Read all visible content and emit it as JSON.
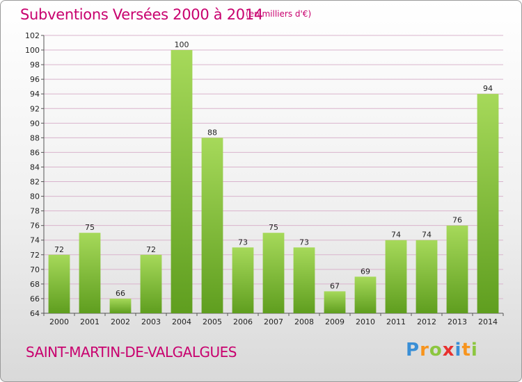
{
  "header": {
    "title": "Subventions Versées 2000 à 2014",
    "unit": "(en milliers d'€)"
  },
  "footer": {
    "commune": "SAINT-MARTIN-DE-VALGALGUES",
    "logo_letters": [
      "P",
      "r",
      "o",
      "x",
      "i",
      "t",
      "i"
    ],
    "logo_colors": [
      "#3a8fd6",
      "#f7941d",
      "#8cc63f",
      "#e8312f",
      "#3a8fd6",
      "#f7941d",
      "#8cc63f"
    ]
  },
  "colors": {
    "bar_light": "#a6d95a",
    "bar_dark": "#5f9e1f",
    "grid": "#d9b3cc",
    "axis": "#555555",
    "accent": "#c8006e"
  },
  "chart_data": {
    "type": "bar",
    "categories": [
      "2000",
      "2001",
      "2002",
      "2003",
      "2004",
      "2005",
      "2006",
      "2007",
      "2008",
      "2009",
      "2010",
      "2011",
      "2012",
      "2013",
      "2014"
    ],
    "values": [
      72,
      75,
      66,
      72,
      100,
      88,
      73,
      75,
      73,
      67,
      69,
      74,
      74,
      76,
      94
    ],
    "title": "Subventions Versées 2000 à 2014",
    "ylabel": "(en milliers d'€)",
    "ylim": [
      64,
      102
    ],
    "ytick_step": 2,
    "grid": true,
    "legend": "none"
  }
}
